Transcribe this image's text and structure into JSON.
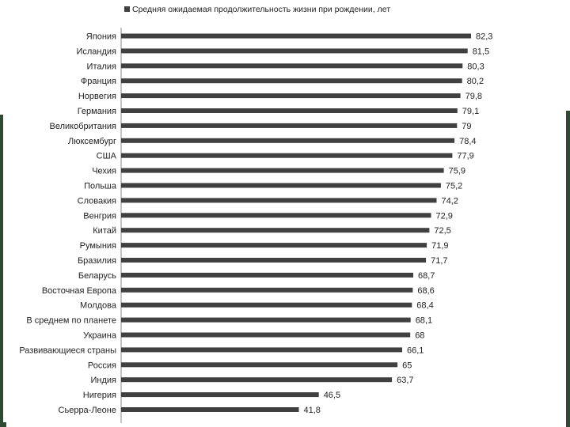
{
  "chart_data": {
    "type": "bar",
    "orientation": "horizontal",
    "title": "",
    "legend": {
      "position": "top",
      "entries": [
        "Средняя ожидаемая продолжительность жизни при рождении, лет"
      ]
    },
    "bar_color": "#404040",
    "grid": false,
    "xlim": [
      0,
      90
    ],
    "categories": [
      "Япония",
      "Исландия",
      "Италия",
      "Франция",
      "Норвегия",
      "Германия",
      "Великобритания",
      "Люксембург",
      "США",
      "Чехия",
      "Польша",
      "Словакия",
      "Венгрия",
      "Китай",
      "Румыния",
      "Бразилия",
      "Беларусь",
      "Восточная Европа",
      "Молдова",
      "В среднем по планете",
      "Украина",
      "Развивающиеся страны",
      "Россия",
      "Индия",
      "Нигерия",
      "Сьерра-Леоне"
    ],
    "series": [
      {
        "name": "Средняя ожидаемая продолжительность жизни при рождении, лет",
        "values": [
          82.3,
          81.5,
          80.3,
          80.2,
          79.8,
          79.1,
          79,
          78.4,
          77.9,
          75.9,
          75.2,
          74.2,
          72.9,
          72.5,
          71.9,
          71.7,
          68.7,
          68.6,
          68.4,
          68.1,
          68,
          66.1,
          65,
          63.7,
          46.5,
          41.8
        ],
        "labels": [
          "82,3",
          "81,5",
          "80,3",
          "80,2",
          "79,8",
          "79,1",
          "79",
          "78,4",
          "77,9",
          "75,9",
          "75,2",
          "74,2",
          "72,9",
          "72,5",
          "71,9",
          "71,7",
          "68,7",
          "68,6",
          "68,4",
          "68,1",
          "68",
          "66,1",
          "65",
          "63,7",
          "46,5",
          "41,8"
        ]
      }
    ]
  }
}
